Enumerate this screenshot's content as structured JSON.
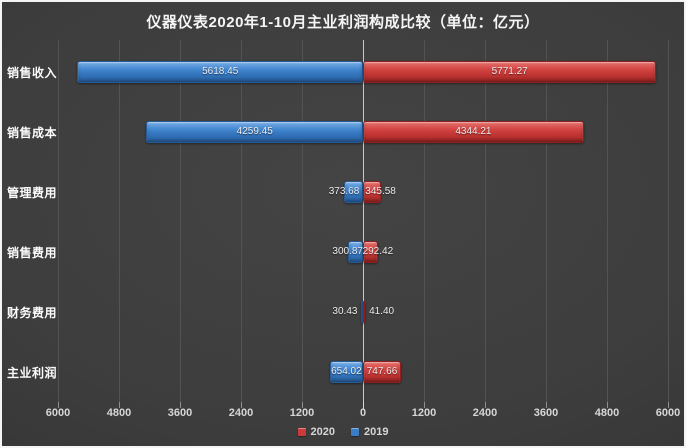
{
  "title": "仪器仪表2020年1-10月主业利润构成比较（单位：亿元）",
  "chart_data": {
    "type": "bar",
    "variant": "diverging-horizontal",
    "unit": "亿元",
    "title": "仪器仪表2020年1-10月主业利润构成比较（单位：亿元）",
    "categories": [
      "销售收入",
      "销售成本",
      "管理费用",
      "销售费用",
      "财务费用",
      "主业利润"
    ],
    "series": [
      {
        "name": "2019",
        "side": "left",
        "color": "#3a7cc6",
        "values": [
          5618.45,
          4259.45,
          373.68,
          300.87,
          30.43,
          654.02
        ]
      },
      {
        "name": "2020",
        "side": "right",
        "color": "#cb3a38",
        "values": [
          5771.27,
          4344.21,
          345.58,
          292.42,
          41.4,
          747.66
        ]
      }
    ],
    "x_axis": {
      "max_each_side": 6000,
      "tick_interval": 1200,
      "tick_labels": [
        "6000",
        "4800",
        "3600",
        "2400",
        "1200",
        "0",
        "1200",
        "2400",
        "3600",
        "4800",
        "6000"
      ]
    },
    "legend": [
      {
        "label": "2020",
        "color": "#cb3a38"
      },
      {
        "label": "2019",
        "color": "#3a7cc6"
      }
    ],
    "grid": "on",
    "legend_position": "bottom-center",
    "colors": {
      "background_center": "#444444",
      "background_edge": "#2a2a2a",
      "gridline": "#535353",
      "zero_axis_line": "#c9c9c9",
      "axis_text": "#d6d6d6",
      "category_text": "#fbfbfb",
      "value_text": "#ececec",
      "frame_border": "#f5f5f5"
    }
  }
}
